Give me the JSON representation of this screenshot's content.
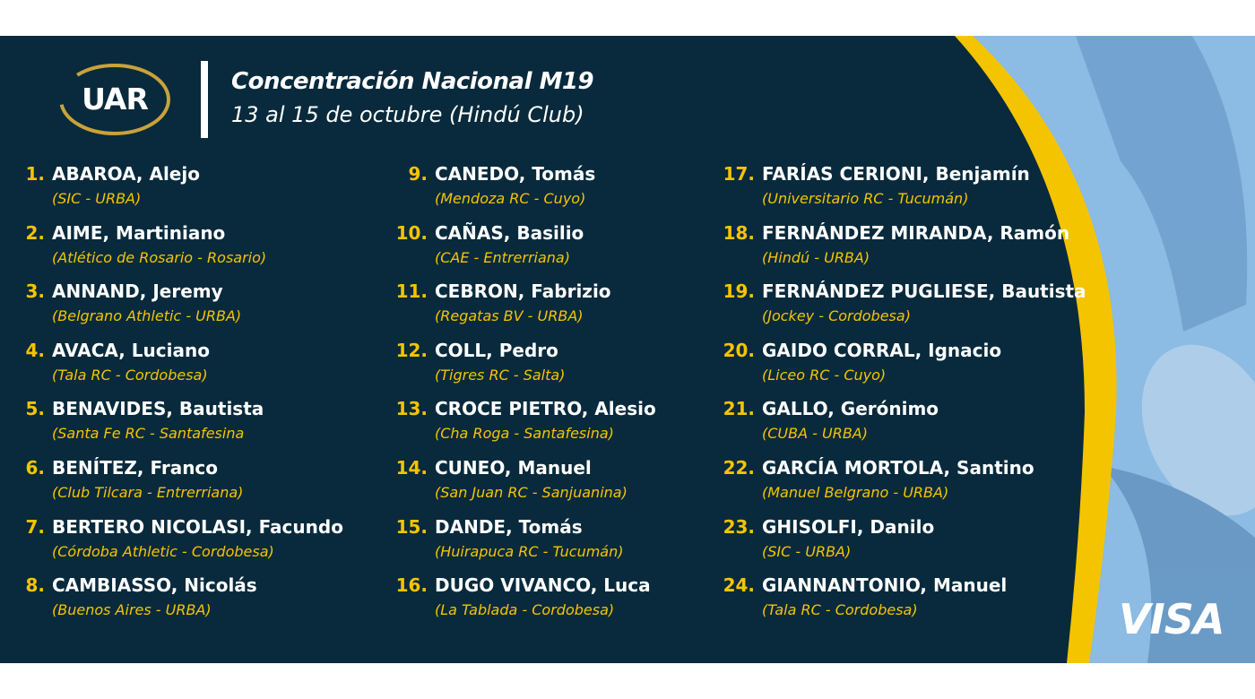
{
  "logo": {
    "text": "UAR"
  },
  "header": {
    "title": "Concentración Nacional M19",
    "subtitle": "13 al 15 de octubre (Hindú Club)"
  },
  "colors": {
    "navy": "#082a3c",
    "yellow": "#f5c400",
    "light_blue": "#8cbbe3"
  },
  "players": [
    {
      "num": "1.",
      "name": "ABAROA, Alejo",
      "club": "(SIC - URBA)"
    },
    {
      "num": "2.",
      "name": "AIME, Martiniano",
      "club": "(Atlético de Rosario - Rosario)"
    },
    {
      "num": "3.",
      "name": "ANNAND, Jeremy",
      "club": "(Belgrano Athletic - URBA)"
    },
    {
      "num": "4.",
      "name": "AVACA, Luciano",
      "club": "(Tala RC - Cordobesa)"
    },
    {
      "num": "5.",
      "name": "BENAVIDES, Bautista",
      "club": "(Santa Fe RC - Santafesina"
    },
    {
      "num": "6.",
      "name": "BENÍTEZ, Franco",
      "club": "(Club Tilcara - Entrerriana)"
    },
    {
      "num": "7.",
      "name": "BERTERO NICOLASI, Facundo",
      "club": "(Córdoba Athletic - Cordobesa)"
    },
    {
      "num": "8.",
      "name": "CAMBIASSO, Nicolás",
      "club": "(Buenos Aires - URBA)"
    },
    {
      "num": "9.",
      "name": "CANEDO, Tomás",
      "club": "(Mendoza RC - Cuyo)"
    },
    {
      "num": "10.",
      "name": "CAÑAS, Basilio",
      "club": "(CAE - Entrerriana)"
    },
    {
      "num": "11.",
      "name": "CEBRON, Fabrizio",
      "club": "(Regatas BV - URBA)"
    },
    {
      "num": "12.",
      "name": "COLL, Pedro",
      "club": "(Tigres RC - Salta)"
    },
    {
      "num": "13.",
      "name": "CROCE PIETRO, Alesio",
      "club": "(Cha Roga - Santafesina)"
    },
    {
      "num": "14.",
      "name": "CUNEO, Manuel",
      "club": "(San Juan RC - Sanjuanina)"
    },
    {
      "num": "15.",
      "name": "DANDE, Tomás",
      "club": "(Huirapuca RC - Tucumán)"
    },
    {
      "num": "16.",
      "name": "DUGO VIVANCO, Luca",
      "club": "(La Tablada - Cordobesa)"
    },
    {
      "num": "17.",
      "name": "FARÍAS CERIONI, Benjamín",
      "club": "(Universitario RC - Tucumán)"
    },
    {
      "num": "18.",
      "name": "FERNÁNDEZ MIRANDA, Ramón",
      "club": "(Hindú - URBA)"
    },
    {
      "num": "19.",
      "name": "FERNÁNDEZ PUGLIESE, Bautista",
      "club": "(Jockey - Cordobesa)"
    },
    {
      "num": "20.",
      "name": "GAIDO CORRAL, Ignacio",
      "club": "(Liceo RC - Cuyo)"
    },
    {
      "num": "21.",
      "name": "GALLO, Gerónimo",
      "club": "(CUBA - URBA)"
    },
    {
      "num": "22.",
      "name": "GARCÍA MORTOLA, Santino",
      "club": "(Manuel Belgrano - URBA)"
    },
    {
      "num": "23.",
      "name": "GHISOLFI, Danilo",
      "club": "(SIC - URBA)"
    },
    {
      "num": "24.",
      "name": "GIANNANTONIO, Manuel",
      "club": "(Tala RC - Cordobesa)"
    }
  ],
  "sponsor": {
    "text": "VISA"
  }
}
